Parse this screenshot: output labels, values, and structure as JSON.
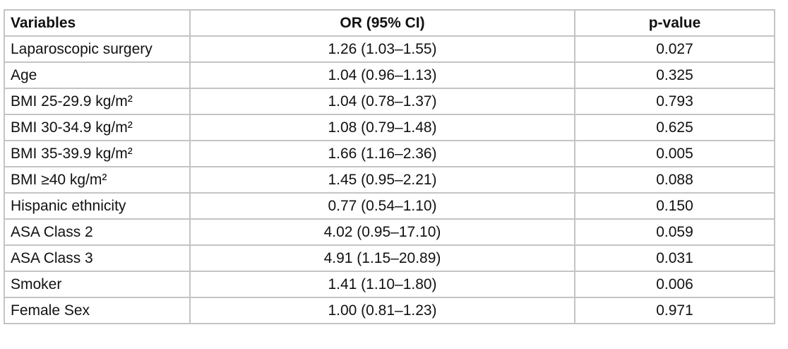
{
  "table": {
    "headers": [
      "Variables",
      "OR (95% CI)",
      "p-value"
    ],
    "rows": [
      [
        "Laparoscopic surgery",
        "1.26 (1.03–1.55)",
        "0.027"
      ],
      [
        "Age",
        "1.04 (0.96–1.13)",
        "0.325"
      ],
      [
        "BMI 25-29.9 kg/m²",
        "1.04 (0.78–1.37)",
        "0.793"
      ],
      [
        "BMI 30-34.9 kg/m²",
        "1.08 (0.79–1.48)",
        "0.625"
      ],
      [
        "BMI 35-39.9 kg/m²",
        "1.66 (1.16–2.36)",
        "0.005"
      ],
      [
        "BMI ≥40 kg/m²",
        "1.45 (0.95–2.21)",
        "0.088"
      ],
      [
        "Hispanic ethnicity",
        "0.77 (0.54–1.10)",
        "0.150"
      ],
      [
        "ASA Class 2",
        "4.02 (0.95–17.10)",
        "0.059"
      ],
      [
        "ASA Class 3",
        "4.91 (1.15–20.89)",
        "0.031"
      ],
      [
        "Smoker",
        "1.41 (1.10–1.80)",
        "0.006"
      ],
      [
        "Female Sex",
        "1.00 (0.81–1.23)",
        "0.971"
      ]
    ]
  }
}
